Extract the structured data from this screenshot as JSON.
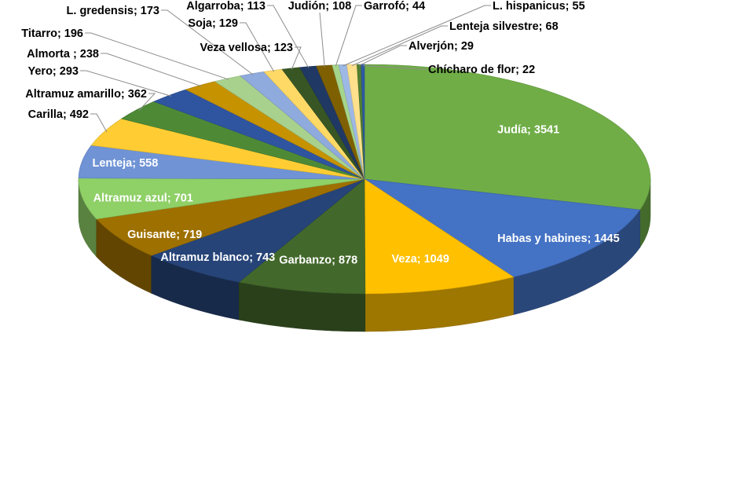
{
  "chart_data": {
    "type": "pie",
    "style": "3d-exploded-perspective",
    "label_format": "{category}; {value}",
    "categories": [
      "Judía",
      "Habas y habines",
      "Veza",
      "Garbanzo",
      "Altramuz blanco",
      "Guisante",
      "Altramuz azul",
      "Lenteja",
      "Carilla",
      "Altramuz amarillo",
      "Yero",
      "Almorta ",
      "Titarro",
      "L. gredensis",
      "Soja",
      "Veza vellosa",
      "Algarroba",
      "Judión",
      "Garrofó",
      "L. hispanicus",
      "Lenteja silvestre",
      "Alverjón",
      "Chícharo de flor"
    ],
    "values": [
      3541,
      1445,
      1049,
      878,
      743,
      719,
      701,
      558,
      492,
      362,
      293,
      238,
      196,
      173,
      129,
      123,
      113,
      108,
      44,
      55,
      68,
      29,
      22
    ],
    "colors": [
      "#70ad47",
      "#4472c4",
      "#ffc000",
      "#43682b",
      "#264478",
      "#9e7000",
      "#8fd067",
      "#6f93d5",
      "#ffcd33",
      "#4e8a36",
      "#2f55a0",
      "#c69200",
      "#a9d18e",
      "#8faadc",
      "#ffd966",
      "#375623",
      "#203864",
      "#7f6000",
      "#a5d58a",
      "#9db8e4",
      "#ffe08c",
      "#507e32",
      "#2e5aa6"
    ],
    "legend": "none",
    "title": ""
  }
}
